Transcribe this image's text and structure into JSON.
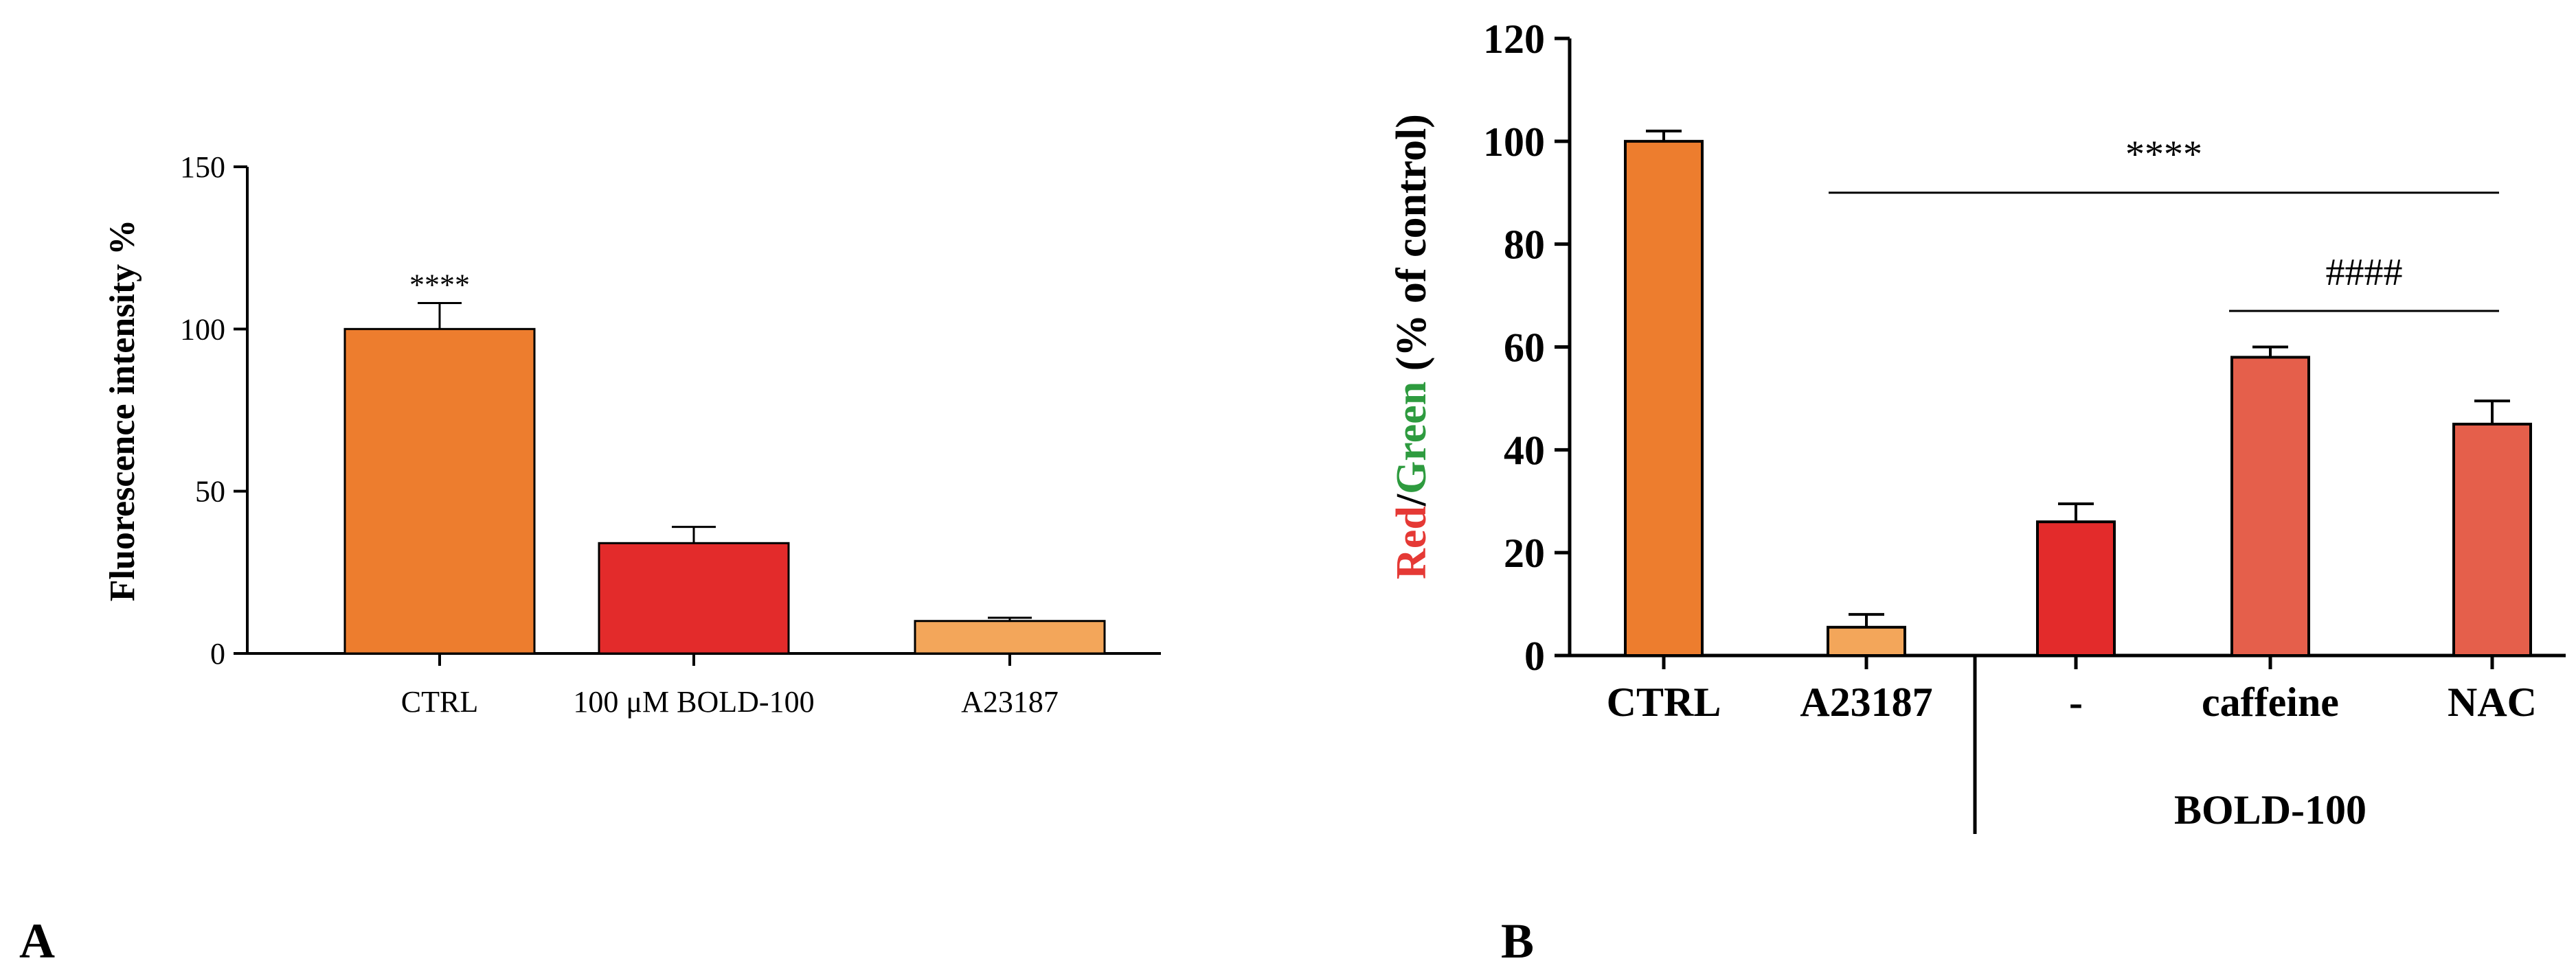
{
  "chart_data": [
    {
      "panel": "A",
      "type": "bar",
      "categories": [
        "CTRL",
        "100 μM BOLD-100",
        "A23187"
      ],
      "values": [
        100,
        34,
        10
      ],
      "errors": [
        8,
        5,
        1
      ],
      "colors": [
        "#ED7D2E",
        "#E32B2B",
        "#F3A65A"
      ],
      "ylabel": "Fluorescence intensity  %",
      "ylim": [
        0,
        150
      ],
      "yticks": [
        0,
        50,
        100,
        150
      ],
      "annotations": [
        {
          "text": "****",
          "category": "CTRL"
        }
      ]
    },
    {
      "panel": "B",
      "type": "bar",
      "categories": [
        "CTRL",
        "A23187",
        "-",
        "caffeine",
        "NAC"
      ],
      "values": [
        100,
        5.5,
        26,
        58,
        45
      ],
      "errors": [
        2,
        2.5,
        3.5,
        2,
        4.5
      ],
      "colors": [
        "#ED7D2E",
        "#F3A65A",
        "#E32B2B",
        "#E55F4B",
        "#E55F4B"
      ],
      "ylabel_parts": [
        {
          "text": "Red",
          "color": "#E53935"
        },
        {
          "text": "/",
          "color": "#000000"
        },
        {
          "text": "Green",
          "color": "#2E9B3F"
        },
        {
          "text": " (% of control)",
          "color": "#000000"
        }
      ],
      "ylim": [
        0,
        120
      ],
      "yticks": [
        0,
        20,
        40,
        60,
        80,
        100,
        120
      ],
      "group_label": "BOLD-100",
      "annotations": [
        {
          "text": "****",
          "from": "A23187",
          "to": "NAC",
          "y": 90
        },
        {
          "text": "####",
          "from": "caffeine",
          "to": "NAC",
          "y": 67
        }
      ]
    }
  ],
  "panels": {
    "a": "A",
    "b": "B"
  }
}
